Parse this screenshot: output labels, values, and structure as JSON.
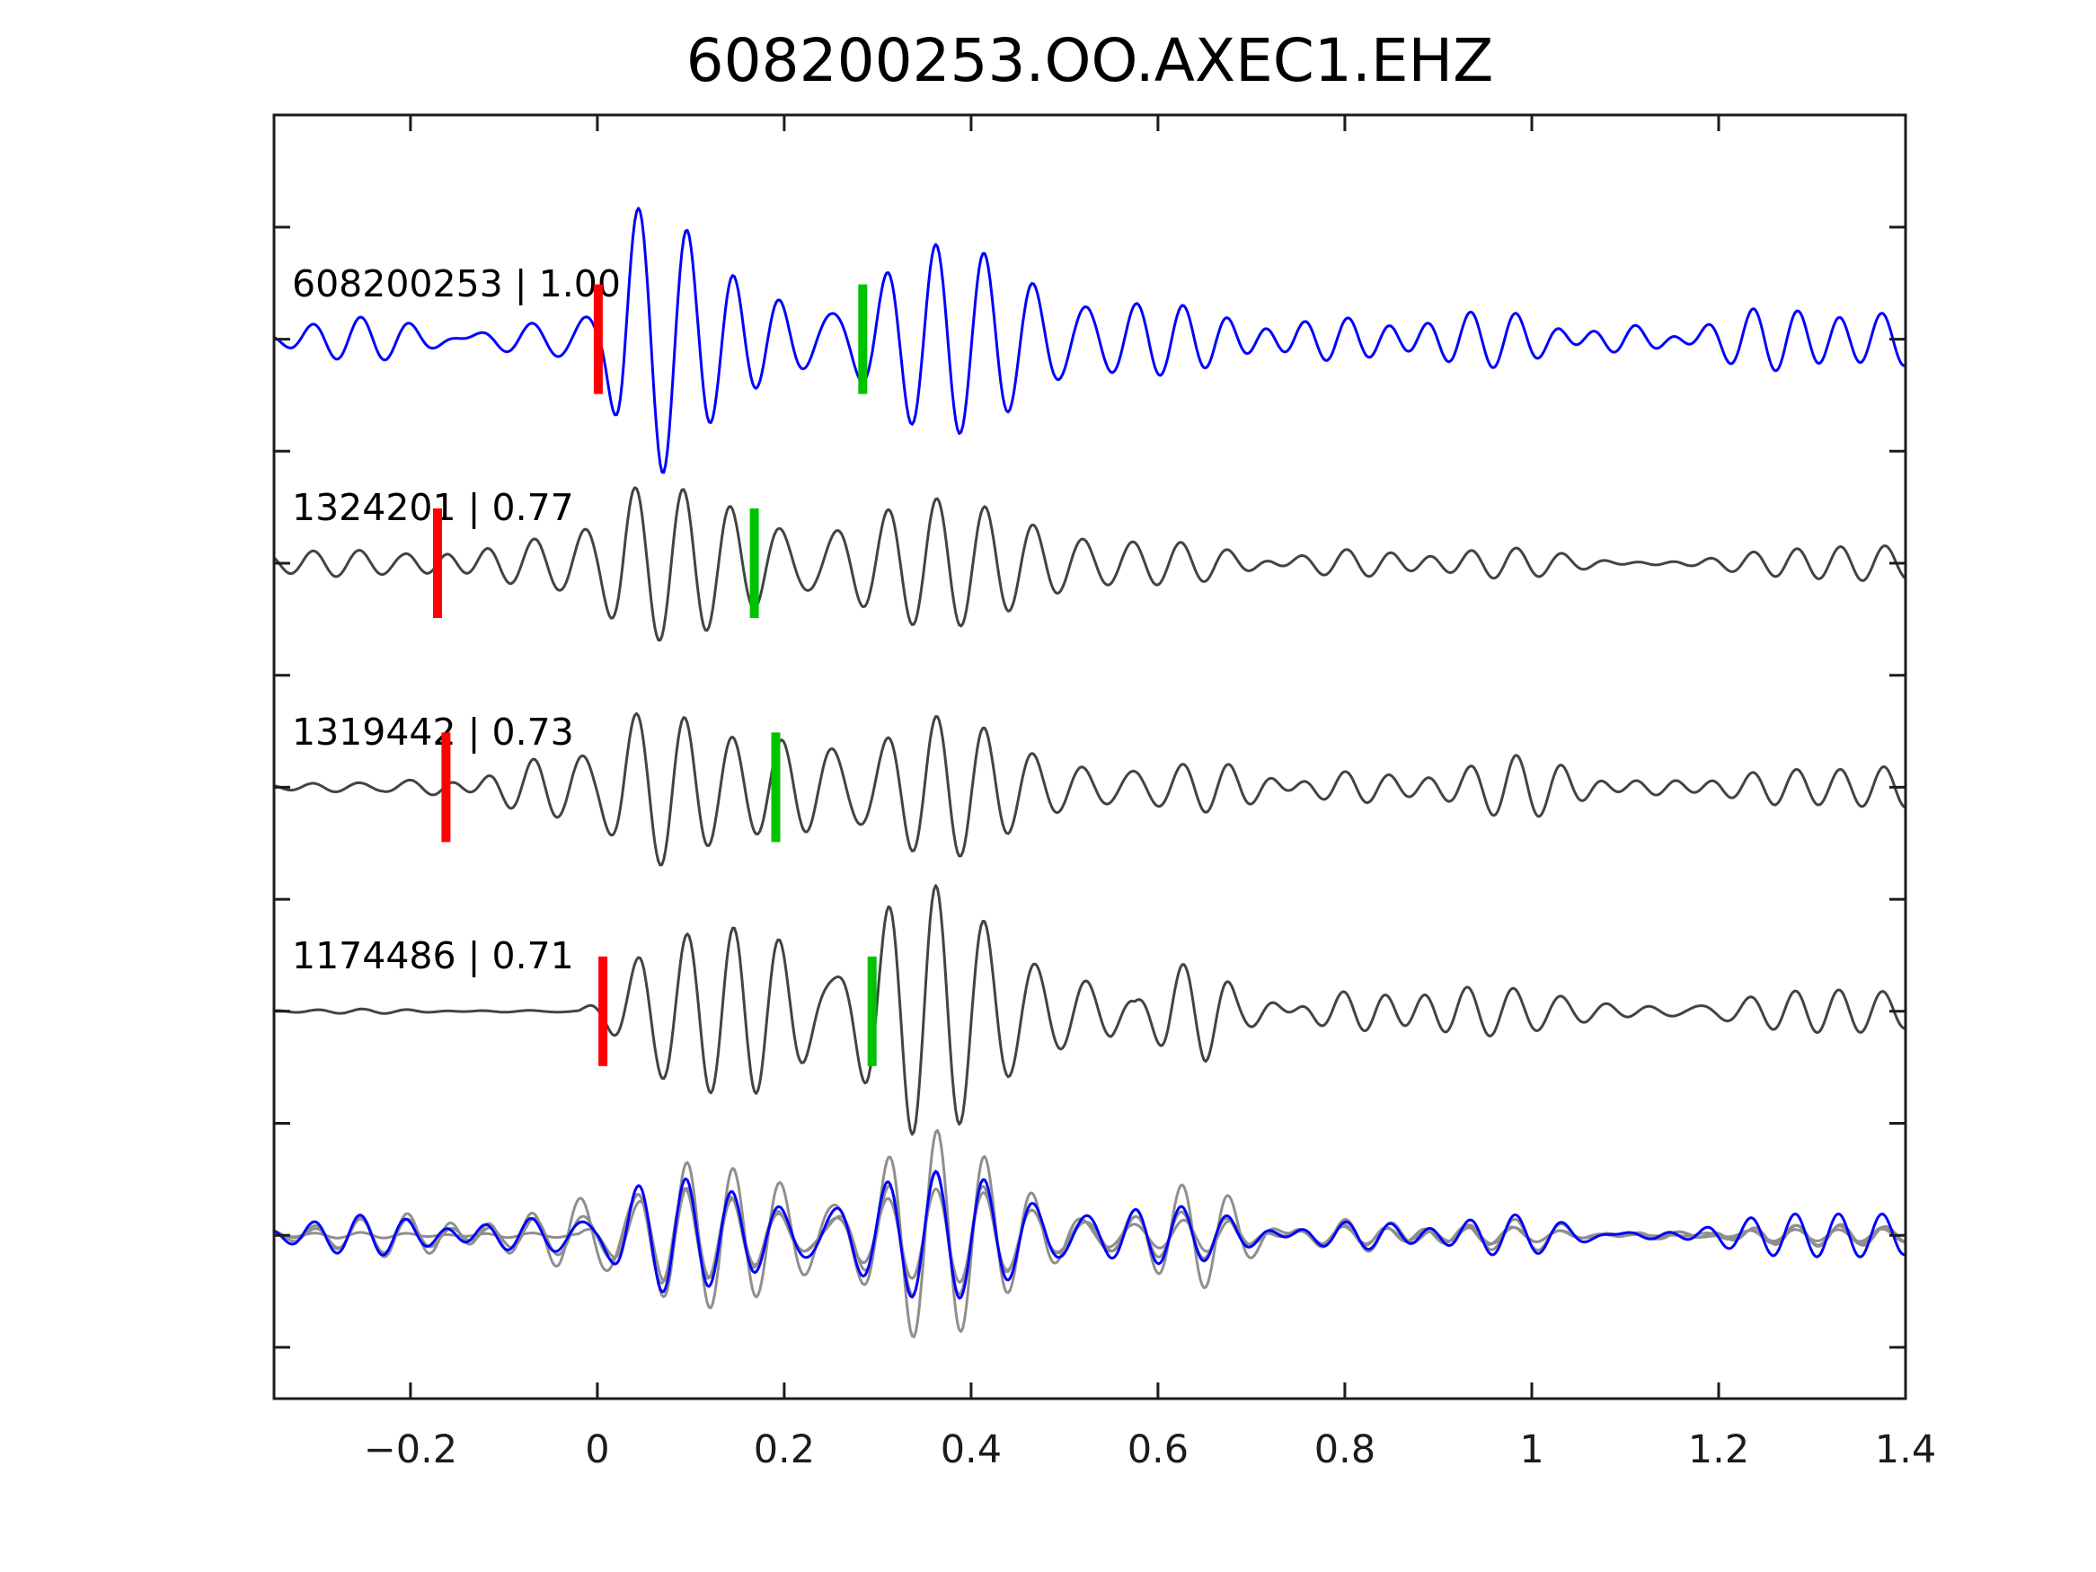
{
  "chart_data": {
    "type": "line",
    "title": "608200253.OO.AXEC1.EHZ",
    "xlabel": "",
    "ylabel": "",
    "grid": false,
    "legend": null,
    "xlim": [
      -0.346,
      1.4
    ],
    "ylim": [
      -0.229,
      5.501
    ],
    "x_ticks": [
      -0.2,
      0,
      0.2,
      0.4,
      0.6,
      0.8,
      1,
      1.2,
      1.4
    ],
    "x_tick_labels": [
      "−0.2",
      "0",
      "0.2",
      "0.4",
      "0.6",
      "0.8",
      "1",
      "1.2",
      "1.4"
    ],
    "y_ticks": [
      0,
      0.5,
      1,
      1.5,
      2,
      2.5,
      3,
      3.5,
      4,
      4.5,
      5
    ],
    "y_tick_labels": [],
    "freq_band": [
      16,
      26
    ],
    "base_seed": 99,
    "colors": {
      "reference_trace": "#0000ff",
      "match_trace": "#434343",
      "overlay_gray": "#8f8f8f",
      "pick_red": "#ff0000",
      "pick_green": "#00c300",
      "axis": "#1c1c1c",
      "text": "#000000"
    },
    "traces": [
      {
        "id": "608200253",
        "correlation": 1.0,
        "label": "608200253 | 1.00",
        "color": "#0000ff",
        "width": 3,
        "offset": 4.5,
        "picks": {
          "red": 0.001,
          "green": 0.284
        },
        "synth": {
          "jitter_seed": 3,
          "jitter": 0.5,
          "envelope": [
            [
              -0.35,
              26
            ],
            [
              -0.12,
              30
            ],
            [
              -0.03,
              34
            ],
            [
              0.005,
              50
            ],
            [
              0.03,
              200
            ],
            [
              0.07,
              190
            ],
            [
              0.11,
              140
            ],
            [
              0.16,
              105
            ],
            [
              0.22,
              88
            ],
            [
              0.3,
              92
            ],
            [
              0.4,
              72
            ],
            [
              0.52,
              60
            ],
            [
              0.65,
              56
            ],
            [
              0.8,
              48
            ],
            [
              0.95,
              42
            ],
            [
              1.1,
              50
            ],
            [
              1.28,
              42
            ],
            [
              1.4,
              38
            ]
          ]
        }
      },
      {
        "id": "1324201",
        "correlation": 0.77,
        "label": "1324201 | 0.77",
        "color": "#434343",
        "width": 3,
        "offset": 3.5,
        "picks": {
          "red": -0.171,
          "green": 0.168
        },
        "synth": {
          "jitter_seed": 7,
          "jitter": 0.45,
          "envelope": [
            [
              -0.35,
              20
            ],
            [
              -0.21,
              18
            ],
            [
              -0.16,
              42
            ],
            [
              -0.1,
              55
            ],
            [
              -0.04,
              65
            ],
            [
              0.0,
              85
            ],
            [
              0.03,
              150
            ],
            [
              0.07,
              138
            ],
            [
              0.11,
              118
            ],
            [
              0.16,
              88
            ],
            [
              0.22,
              70
            ],
            [
              0.3,
              55
            ],
            [
              0.4,
              50
            ],
            [
              0.52,
              44
            ],
            [
              0.64,
              40
            ],
            [
              0.78,
              32
            ],
            [
              0.92,
              28
            ],
            [
              1.06,
              25
            ],
            [
              1.22,
              28
            ],
            [
              1.4,
              22
            ]
          ]
        }
      },
      {
        "id": "1319442",
        "correlation": 0.73,
        "label": "1319442 | 0.73",
        "color": "#434343",
        "width": 3,
        "offset": 2.5,
        "picks": {
          "red": -0.162,
          "green": 0.191
        },
        "synth": {
          "jitter_seed": 12,
          "jitter": 0.45,
          "envelope": [
            [
              -0.35,
              9
            ],
            [
              -0.23,
              9
            ],
            [
              -0.17,
              32
            ],
            [
              -0.1,
              44
            ],
            [
              -0.04,
              52
            ],
            [
              0.0,
              72
            ],
            [
              0.03,
              152
            ],
            [
              0.07,
              140
            ],
            [
              0.11,
              112
            ],
            [
              0.16,
              86
            ],
            [
              0.22,
              72
            ],
            [
              0.3,
              56
            ],
            [
              0.38,
              50
            ],
            [
              0.48,
              42
            ],
            [
              0.58,
              48
            ],
            [
              0.7,
              36
            ],
            [
              0.84,
              32
            ],
            [
              0.98,
              40
            ],
            [
              1.12,
              30
            ],
            [
              1.26,
              34
            ],
            [
              1.4,
              26
            ]
          ]
        }
      },
      {
        "id": "1174486",
        "correlation": 0.71,
        "label": "1174486 | 0.71",
        "color": "#434343",
        "width": 3,
        "offset": 1.5,
        "picks": {
          "red": 0.006,
          "green": 0.294
        },
        "synth": {
          "jitter_seed": 21,
          "jitter": 0.5,
          "envelope": [
            [
              -0.35,
              3
            ],
            [
              -0.02,
              3
            ],
            [
              0.01,
              45
            ],
            [
              0.05,
              150
            ],
            [
              0.09,
              160
            ],
            [
              0.14,
              138
            ],
            [
              0.2,
              120
            ],
            [
              0.27,
              108
            ],
            [
              0.34,
              96
            ],
            [
              0.42,
              88
            ],
            [
              0.5,
              72
            ],
            [
              0.55,
              55
            ],
            [
              0.575,
              20
            ],
            [
              0.61,
              75
            ],
            [
              0.65,
              78
            ],
            [
              0.69,
              32
            ],
            [
              0.76,
              46
            ],
            [
              0.86,
              36
            ],
            [
              0.96,
              30
            ],
            [
              1.1,
              26
            ],
            [
              1.25,
              24
            ],
            [
              1.4,
              22
            ]
          ]
        }
      }
    ],
    "overlay": {
      "offset": 0.5,
      "members": [
        {
          "name": "overlay-gray-1",
          "color": "#8f8f8f",
          "width": 3,
          "synth": {
            "jitter_seed": 31,
            "jitter": 0.35,
            "envelope": [
              [
                -0.35,
                14
              ],
              [
                -0.16,
                38
              ],
              [
                -0.06,
                42
              ],
              [
                0.02,
                120
              ],
              [
                0.08,
                140
              ],
              [
                0.15,
                95
              ],
              [
                0.25,
                70
              ],
              [
                0.33,
                88
              ],
              [
                0.44,
                60
              ],
              [
                0.54,
                68
              ],
              [
                0.64,
                88
              ],
              [
                0.74,
                32
              ],
              [
                0.9,
                22
              ],
              [
                1.1,
                17
              ],
              [
                1.4,
                14
              ]
            ]
          }
        },
        {
          "name": "overlay-gray-2",
          "color": "#8f8f8f",
          "width": 3,
          "synth": {
            "jitter_seed": 41,
            "jitter": 0.3,
            "envelope": [
              [
                -0.35,
                10
              ],
              [
                -0.2,
                30
              ],
              [
                -0.1,
                26
              ],
              [
                0.0,
                44
              ],
              [
                0.05,
                90
              ],
              [
                0.12,
                70
              ],
              [
                0.2,
                50
              ],
              [
                0.32,
                42
              ],
              [
                0.48,
                38
              ],
              [
                0.62,
                34
              ],
              [
                0.78,
                18
              ],
              [
                0.95,
                14
              ],
              [
                1.15,
                16
              ],
              [
                1.4,
                12
              ]
            ]
          }
        },
        {
          "name": "overlay-gray-3",
          "color": "#8f8f8f",
          "width": 3,
          "synth": {
            "jitter_seed": 51,
            "jitter": 0.2,
            "envelope": [
              [
                -0.35,
                4
              ],
              [
                -0.02,
                4
              ],
              [
                0.02,
                60
              ],
              [
                0.08,
                80
              ],
              [
                0.2,
                40
              ],
              [
                0.35,
                30
              ],
              [
                0.5,
                35
              ],
              [
                0.65,
                40
              ],
              [
                0.8,
                15
              ],
              [
                1.0,
                10
              ],
              [
                1.4,
                8
              ]
            ]
          }
        },
        {
          "name": "overlay-blue",
          "color": "#0000ff",
          "width": 3,
          "synth": {
            "jitter_seed": 61,
            "jitter": 0.25,
            "envelope": [
              [
                -0.35,
                24
              ],
              [
                -0.2,
                28
              ],
              [
                -0.1,
                30
              ],
              [
                0.0,
                40
              ],
              [
                0.03,
                105
              ],
              [
                0.08,
                95
              ],
              [
                0.14,
                70
              ],
              [
                0.2,
                55
              ],
              [
                0.28,
                50
              ],
              [
                0.36,
                45
              ],
              [
                0.45,
                48
              ],
              [
                0.55,
                50
              ],
              [
                0.62,
                45
              ],
              [
                0.7,
                32
              ],
              [
                0.8,
                26
              ],
              [
                0.95,
                30
              ],
              [
                1.1,
                32
              ],
              [
                1.25,
                28
              ],
              [
                1.4,
                25
              ]
            ]
          }
        }
      ]
    }
  }
}
